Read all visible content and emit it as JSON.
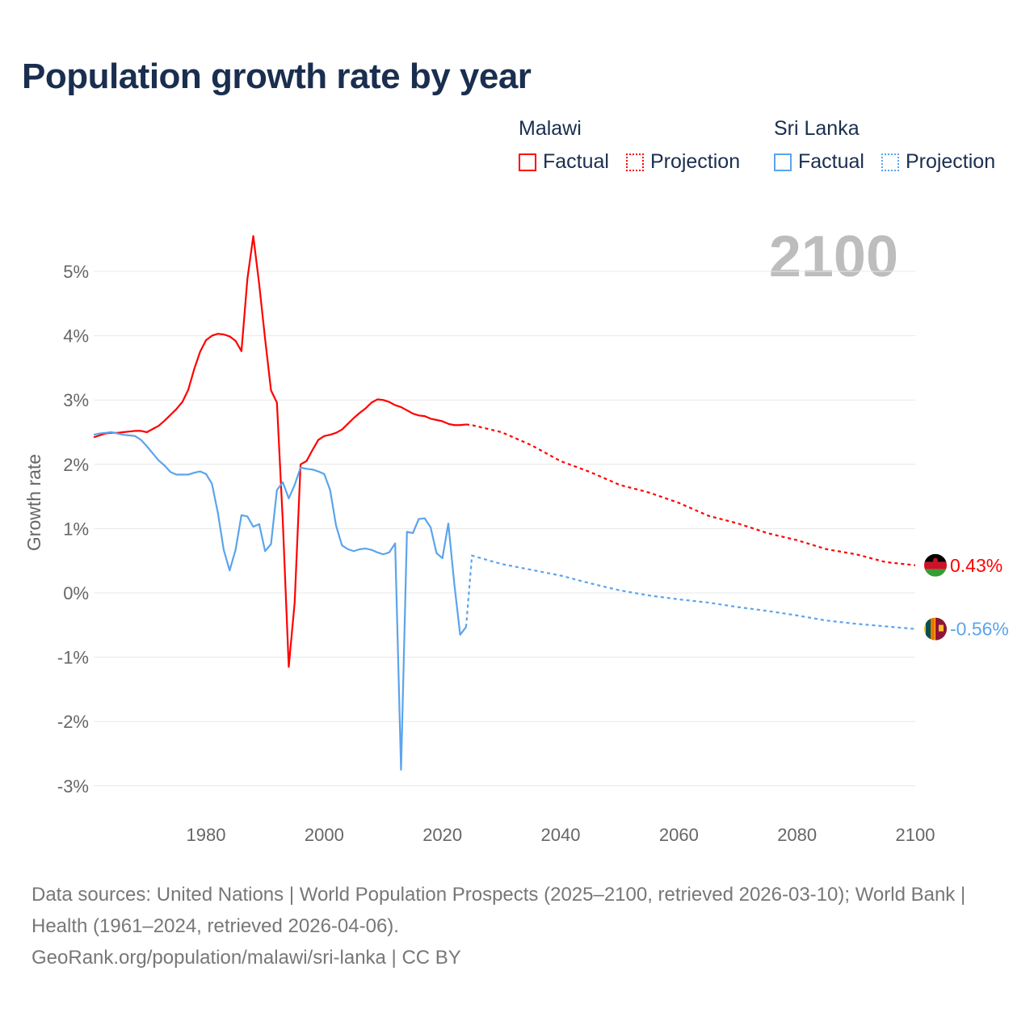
{
  "chart_data": {
    "type": "line",
    "title": "Population growth rate by year",
    "ylabel": "Growth rate",
    "xlabel": "",
    "xlim": [
      1961,
      2100
    ],
    "ylim": [
      -3.3,
      5.8
    ],
    "x_ticks": [
      1980,
      2000,
      2020,
      2040,
      2060,
      2080,
      2100
    ],
    "x_tick_labels": [
      "1980",
      "2000",
      "2020",
      "2040",
      "2060",
      "2080",
      "2100"
    ],
    "y_ticks": [
      5,
      4,
      3,
      2,
      1,
      0,
      -1,
      -2,
      -3
    ],
    "y_tick_labels": [
      "5%",
      "4%",
      "3%",
      "2%",
      "1%",
      "0%",
      "-1%",
      "-2%",
      "-3%"
    ],
    "grid": true,
    "year_watermark": "2100",
    "legend": {
      "placement": "top-right",
      "groups": [
        {
          "name": "Malawi",
          "factual_label": "Factual",
          "projection_label": "Projection"
        },
        {
          "name": "Sri Lanka",
          "factual_label": "Factual",
          "projection_label": "Projection"
        }
      ]
    },
    "series": [
      {
        "name": "Malawi",
        "color": "#ff0000",
        "end_label": "0.43%",
        "factual": {
          "x": [
            1961,
            1962,
            1963,
            1964,
            1965,
            1966,
            1967,
            1968,
            1969,
            1970,
            1971,
            1972,
            1973,
            1974,
            1975,
            1976,
            1977,
            1978,
            1979,
            1980,
            1981,
            1982,
            1983,
            1984,
            1985,
            1986,
            1987,
            1988,
            1989,
            1990,
            1991,
            1992,
            1993,
            1994,
            1995,
            1996,
            1997,
            1998,
            1999,
            2000,
            2001,
            2002,
            2003,
            2004,
            2005,
            2006,
            2007,
            2008,
            2009,
            2010,
            2011,
            2012,
            2013,
            2014,
            2015,
            2016,
            2017,
            2018,
            2019,
            2020,
            2021,
            2022,
            2023,
            2024
          ],
          "y": [
            2.42,
            2.45,
            2.48,
            2.49,
            2.49,
            2.5,
            2.51,
            2.52,
            2.52,
            2.5,
            2.55,
            2.6,
            2.68,
            2.77,
            2.86,
            2.97,
            3.16,
            3.48,
            3.75,
            3.93,
            4.0,
            4.03,
            4.02,
            3.99,
            3.92,
            3.76,
            4.88,
            5.55,
            4.8,
            3.95,
            3.15,
            2.96,
            1.1,
            -1.15,
            -0.15,
            2.0,
            2.05,
            2.22,
            2.38,
            2.44,
            2.46,
            2.49,
            2.54,
            2.63,
            2.72,
            2.8,
            2.87,
            2.96,
            3.01,
            3.0,
            2.97,
            2.92,
            2.89,
            2.84,
            2.79,
            2.76,
            2.75,
            2.71,
            2.69,
            2.67,
            2.63,
            2.61,
            2.61,
            2.62
          ]
        },
        "projection": {
          "x": [
            2025,
            2030,
            2035,
            2040,
            2045,
            2050,
            2055,
            2060,
            2065,
            2070,
            2075,
            2080,
            2085,
            2090,
            2095,
            2100
          ],
          "y": [
            2.61,
            2.5,
            2.3,
            2.05,
            1.88,
            1.68,
            1.56,
            1.4,
            1.2,
            1.08,
            0.93,
            0.82,
            0.68,
            0.6,
            0.48,
            0.43
          ]
        }
      },
      {
        "name": "Sri Lanka",
        "color": "#5ba4ec",
        "end_label": "-0.56%",
        "factual": {
          "x": [
            1961,
            1962,
            1963,
            1964,
            1965,
            1966,
            1967,
            1968,
            1969,
            1970,
            1971,
            1972,
            1973,
            1974,
            1975,
            1976,
            1977,
            1978,
            1979,
            1980,
            1981,
            1982,
            1983,
            1984,
            1985,
            1986,
            1987,
            1988,
            1989,
            1990,
            1991,
            1992,
            1993,
            1994,
            1995,
            1996,
            1997,
            1998,
            1999,
            2000,
            2001,
            2002,
            2003,
            2004,
            2005,
            2006,
            2007,
            2008,
            2009,
            2010,
            2011,
            2012,
            2013,
            2014,
            2015,
            2016,
            2017,
            2018,
            2019,
            2020,
            2021,
            2022,
            2023,
            2024
          ],
          "y": [
            2.46,
            2.48,
            2.49,
            2.5,
            2.48,
            2.46,
            2.45,
            2.44,
            2.38,
            2.28,
            2.17,
            2.06,
            1.98,
            1.88,
            1.84,
            1.84,
            1.84,
            1.87,
            1.89,
            1.85,
            1.7,
            1.25,
            0.67,
            0.35,
            0.67,
            1.21,
            1.19,
            1.03,
            1.07,
            0.65,
            0.76,
            1.6,
            1.72,
            1.47,
            1.68,
            1.95,
            1.93,
            1.92,
            1.89,
            1.85,
            1.6,
            1.05,
            0.74,
            0.68,
            0.65,
            0.68,
            0.69,
            0.67,
            0.63,
            0.6,
            0.63,
            0.77,
            -2.75,
            0.95,
            0.93,
            1.15,
            1.16,
            1.02,
            0.62,
            0.54,
            1.08,
            0.15,
            -0.65,
            -0.53
          ]
        },
        "projection": {
          "x": [
            2025,
            2030,
            2035,
            2040,
            2045,
            2050,
            2055,
            2060,
            2065,
            2070,
            2075,
            2080,
            2085,
            2090,
            2095,
            2100
          ],
          "y": [
            0.58,
            0.45,
            0.36,
            0.27,
            0.15,
            0.04,
            -0.04,
            -0.1,
            -0.15,
            -0.22,
            -0.28,
            -0.35,
            -0.43,
            -0.48,
            -0.52,
            -0.56
          ]
        }
      }
    ]
  },
  "footer": {
    "sources": "Data sources: United Nations | World Population Prospects (2025–2100, retrieved 2026-03-10); World Bank | Health (1961–2024, retrieved 2026-04-06).",
    "credit": "GeoRank.org/population/malawi/sri-lanka | CC BY"
  }
}
